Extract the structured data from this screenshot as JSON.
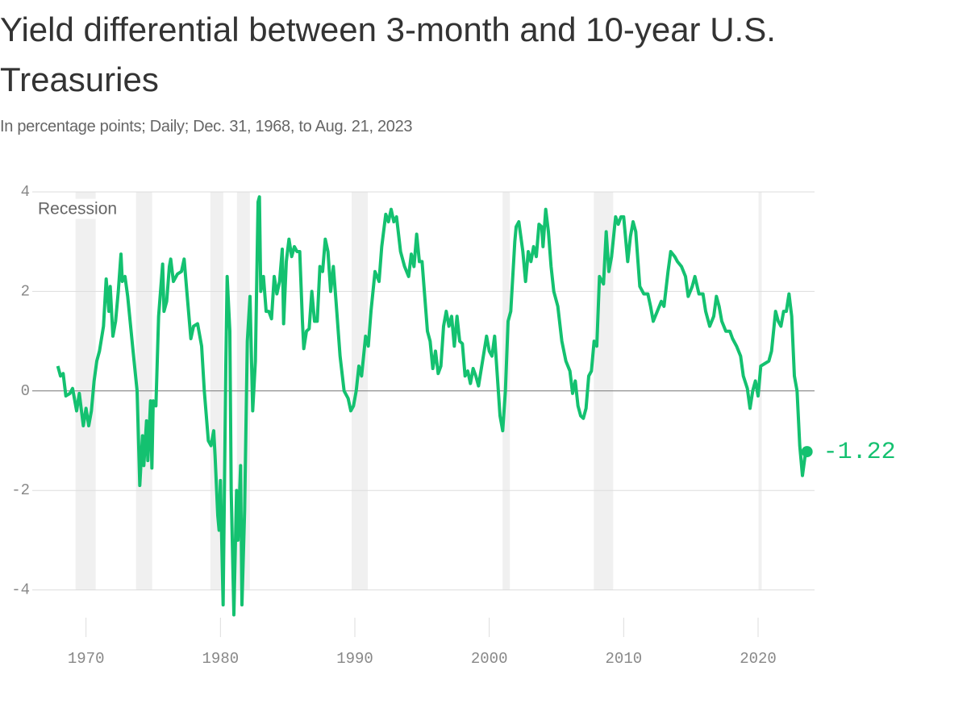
{
  "chart_data": {
    "type": "line",
    "title": "Yield differential between 3-month and 10-year U.S. Treasuries",
    "subtitle": "In percentage points; Daily; Dec. 31, 1968, to Aug. 21, 2023",
    "recession_label": "Recession",
    "color": "#14c170",
    "xlim": [
      1966,
      2024.2
    ],
    "xticks": [
      1970,
      1980,
      1990,
      2000,
      2010,
      2020
    ],
    "ylim": [
      -4.8,
      4
    ],
    "yticks": [
      4,
      2,
      0,
      -2,
      -4
    ],
    "grid": true,
    "recessions": [
      [
        1969.22,
        1970.72
      ],
      [
        1973.72,
        1974.92
      ],
      [
        1979.25,
        1980.21
      ],
      [
        1981.23,
        1982.19
      ],
      [
        1989.76,
        1990.96
      ],
      [
        2000.99,
        2001.53
      ],
      [
        2007.78,
        2009.22
      ],
      [
        2020.03,
        2020.27
      ]
    ],
    "x": [
      1967.9,
      1968.1,
      1968.3,
      1968.5,
      1968.8,
      1969.0,
      1969.3,
      1969.5,
      1969.8,
      1970.0,
      1970.2,
      1970.4,
      1970.6,
      1970.8,
      1971.0,
      1971.3,
      1971.5,
      1971.7,
      1971.8,
      1972.0,
      1972.2,
      1972.4,
      1972.6,
      1972.7,
      1972.9,
      1973.1,
      1973.5,
      1973.8,
      1974.0,
      1974.2,
      1974.3,
      1974.5,
      1974.6,
      1974.8,
      1974.9,
      1975.0,
      1975.2,
      1975.4,
      1975.7,
      1975.8,
      1976.0,
      1976.2,
      1976.3,
      1976.5,
      1976.8,
      1977.1,
      1977.3,
      1977.5,
      1977.8,
      1978.0,
      1978.3,
      1978.6,
      1978.8,
      1979.1,
      1979.3,
      1979.5,
      1979.6,
      1979.8,
      1979.9,
      1980.0,
      1980.2,
      1980.4,
      1980.5,
      1980.7,
      1980.8,
      1981.0,
      1981.2,
      1981.3,
      1981.5,
      1981.6,
      1981.8,
      1982.0,
      1982.2,
      1982.4,
      1982.6,
      1982.8,
      1982.9,
      1983.0,
      1983.2,
      1983.4,
      1983.6,
      1983.8,
      1984.0,
      1984.2,
      1984.4,
      1984.6,
      1984.7,
      1984.9,
      1985.1,
      1985.3,
      1985.5,
      1985.7,
      1985.9,
      1986.1,
      1986.2,
      1986.4,
      1986.6,
      1986.8,
      1987.0,
      1987.2,
      1987.4,
      1987.6,
      1987.8,
      1988.0,
      1988.2,
      1988.4,
      1988.6,
      1988.9,
      1989.2,
      1989.5,
      1989.7,
      1989.9,
      1990.1,
      1990.3,
      1990.5,
      1990.8,
      1991.0,
      1991.2,
      1991.5,
      1991.8,
      1992.0,
      1992.3,
      1992.5,
      1992.7,
      1992.9,
      1993.1,
      1993.4,
      1993.7,
      1994.0,
      1994.2,
      1994.4,
      1994.6,
      1994.8,
      1995.0,
      1995.2,
      1995.4,
      1995.6,
      1995.8,
      1996.0,
      1996.2,
      1996.4,
      1996.6,
      1996.8,
      1997.0,
      1997.2,
      1997.4,
      1997.6,
      1997.8,
      1998.0,
      1998.2,
      1998.4,
      1998.6,
      1998.8,
      1999.0,
      1999.2,
      1999.5,
      1999.8,
      2000.0,
      2000.2,
      2000.4,
      2000.6,
      2000.8,
      2001.0,
      2001.2,
      2001.4,
      2001.6,
      2001.9,
      2002.0,
      2002.2,
      2002.5,
      2002.7,
      2002.9,
      2003.1,
      2003.3,
      2003.5,
      2003.7,
      2003.9,
      2004.0,
      2004.2,
      2004.4,
      2004.6,
      2004.8,
      2005.1,
      2005.4,
      2005.7,
      2006.0,
      2006.2,
      2006.4,
      2006.6,
      2006.8,
      2007.0,
      2007.2,
      2007.4,
      2007.6,
      2007.8,
      2008.0,
      2008.2,
      2008.5,
      2008.7,
      2008.9,
      2009.1,
      2009.4,
      2009.6,
      2009.8,
      2010.0,
      2010.3,
      2010.5,
      2010.7,
      2010.9,
      2011.2,
      2011.5,
      2011.8,
      2012.0,
      2012.2,
      2012.5,
      2012.8,
      2013.0,
      2013.3,
      2013.5,
      2013.8,
      2014.0,
      2014.3,
      2014.6,
      2014.8,
      2015.1,
      2015.3,
      2015.6,
      2015.9,
      2016.1,
      2016.4,
      2016.7,
      2016.9,
      2017.1,
      2017.3,
      2017.6,
      2017.9,
      2018.1,
      2018.4,
      2018.7,
      2018.9,
      2019.2,
      2019.4,
      2019.6,
      2019.8,
      2020.0,
      2020.2,
      2020.5,
      2020.8,
      2021.0,
      2021.3,
      2021.5,
      2021.7,
      2021.9,
      2022.1,
      2022.3,
      2022.5,
      2022.7,
      2022.9,
      2023.1,
      2023.3,
      2023.5,
      2023.64
    ],
    "values": [
      0.5,
      0.3,
      0.35,
      -0.1,
      -0.05,
      0.05,
      -0.4,
      -0.05,
      -0.7,
      -0.35,
      -0.7,
      -0.4,
      0.2,
      0.6,
      0.8,
      1.3,
      2.25,
      1.6,
      2.1,
      1.1,
      1.4,
      2.0,
      2.75,
      2.2,
      2.3,
      1.9,
      0.8,
      0.0,
      -1.9,
      -0.9,
      -1.5,
      -0.6,
      -1.4,
      -0.2,
      -1.55,
      -0.2,
      -0.3,
      1.5,
      2.55,
      1.6,
      1.8,
      2.5,
      2.65,
      2.2,
      2.35,
      2.4,
      2.65,
      2.0,
      1.05,
      1.3,
      1.35,
      0.9,
      0.0,
      -1.0,
      -1.1,
      -0.8,
      -1.3,
      -2.5,
      -2.8,
      -1.8,
      -4.3,
      0.5,
      2.3,
      1.2,
      -2.0,
      -4.5,
      -2.0,
      -3.0,
      -1.5,
      -4.3,
      -2.4,
      1.0,
      1.9,
      -0.4,
      0.6,
      3.8,
      3.9,
      2.0,
      2.3,
      1.6,
      1.6,
      1.45,
      2.3,
      1.95,
      2.2,
      2.85,
      1.35,
      2.6,
      3.05,
      2.7,
      2.9,
      2.8,
      2.8,
      1.4,
      0.85,
      1.2,
      1.25,
      2.0,
      1.4,
      1.4,
      2.5,
      2.4,
      3.05,
      2.8,
      2.0,
      2.5,
      1.8,
      0.7,
      0.0,
      -0.15,
      -0.4,
      -0.3,
      0.0,
      0.5,
      0.3,
      1.1,
      0.9,
      1.6,
      2.4,
      2.2,
      2.9,
      3.55,
      3.4,
      3.65,
      3.4,
      3.5,
      2.8,
      2.5,
      2.3,
      2.75,
      2.5,
      3.15,
      2.6,
      2.6,
      1.9,
      1.2,
      1.0,
      0.45,
      0.8,
      0.35,
      0.5,
      1.3,
      1.6,
      1.3,
      1.5,
      0.9,
      1.5,
      1.0,
      0.95,
      0.3,
      0.4,
      0.15,
      0.45,
      0.3,
      0.1,
      0.6,
      1.1,
      0.8,
      0.7,
      1.1,
      0.3,
      -0.5,
      -0.8,
      0.0,
      1.4,
      1.6,
      3.0,
      3.3,
      3.4,
      2.8,
      2.2,
      2.8,
      2.6,
      2.9,
      2.7,
      3.35,
      3.3,
      2.9,
      3.65,
      3.2,
      2.5,
      2.0,
      1.7,
      1.0,
      0.6,
      0.4,
      -0.05,
      0.2,
      -0.3,
      -0.5,
      -0.55,
      -0.35,
      0.3,
      0.4,
      1.0,
      0.9,
      2.3,
      2.15,
      3.2,
      2.4,
      2.7,
      3.5,
      3.35,
      3.5,
      3.5,
      2.6,
      3.1,
      3.4,
      3.2,
      2.1,
      1.95,
      1.95,
      1.7,
      1.4,
      1.6,
      1.8,
      1.7,
      2.4,
      2.8,
      2.7,
      2.6,
      2.5,
      2.3,
      1.9,
      2.1,
      2.3,
      1.95,
      1.95,
      1.6,
      1.3,
      1.5,
      1.9,
      1.7,
      1.4,
      1.2,
      1.2,
      1.05,
      0.9,
      0.7,
      0.3,
      0.05,
      -0.35,
      0.0,
      0.2,
      -0.1,
      0.5,
      0.55,
      0.6,
      0.8,
      1.6,
      1.4,
      1.3,
      1.6,
      1.6,
      1.95,
      1.5,
      0.3,
      0.0,
      -1.1,
      -1.7,
      -1.3,
      -1.22
    ]
  }
}
